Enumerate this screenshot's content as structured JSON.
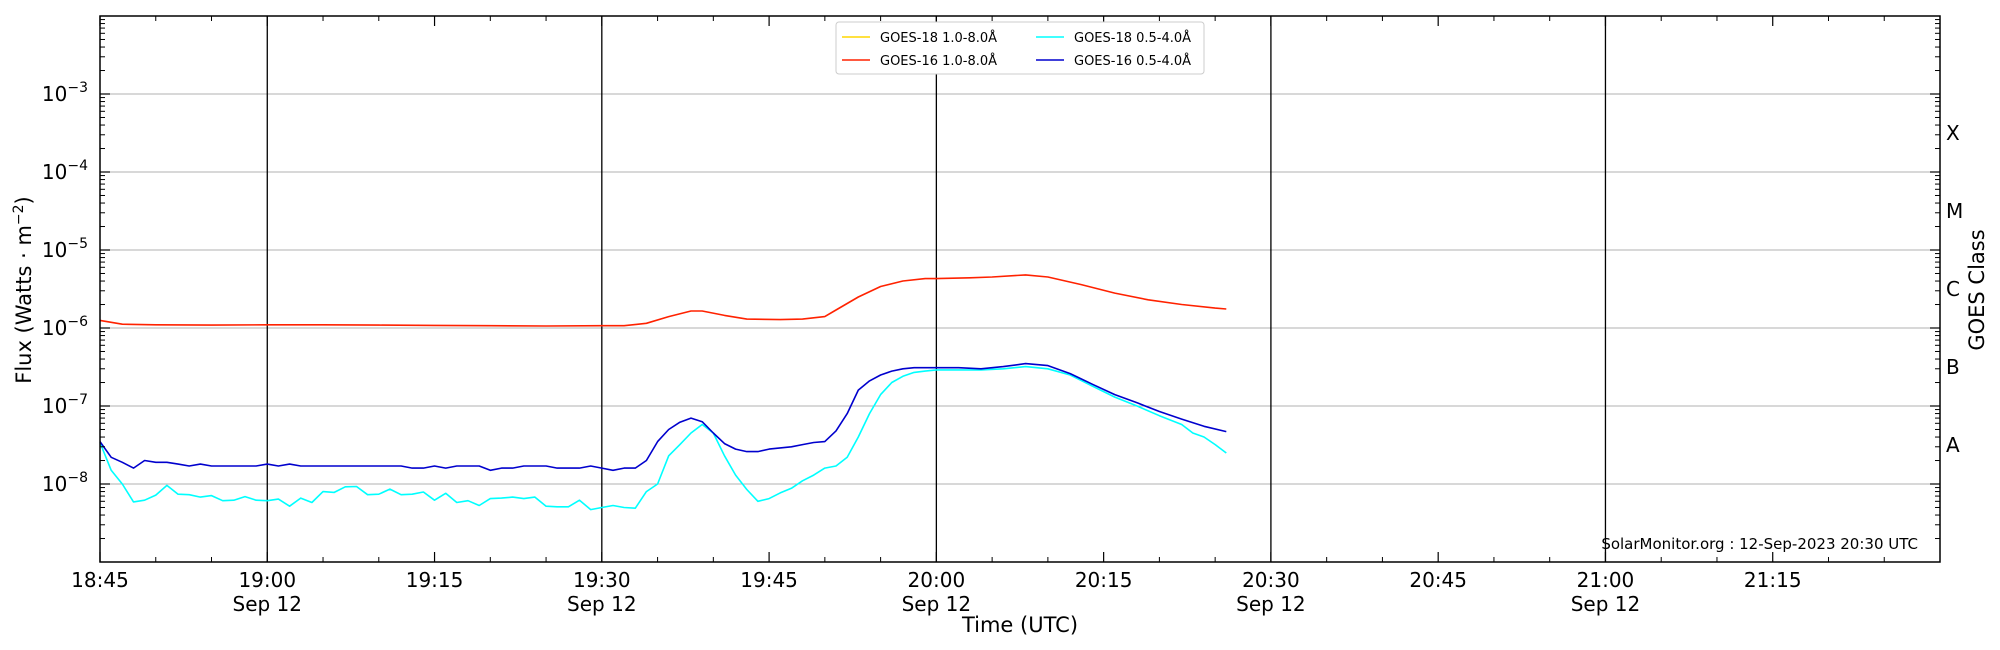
{
  "chart_data": {
    "type": "line",
    "y_scale": "log",
    "ylim": [
      1e-09,
      0.01
    ],
    "xlim": [
      "18:45",
      "21:30"
    ],
    "xlabel": "Time (UTC)",
    "ylabel": "Flux (Watts · m",
    "ylabel_sup": "−2",
    "ylabel_end": ")",
    "y2label": "GOES Class",
    "grid": "horizontal",
    "legend_position": "top-center",
    "credit": "SolarMonitor.org : 12-Sep-2023 20:30 UTC",
    "x_ticks": [
      {
        "t": "18:45",
        "label": "18:45",
        "sub": ""
      },
      {
        "t": "19:00",
        "label": "19:00",
        "sub": "Sep 12"
      },
      {
        "t": "19:15",
        "label": "19:15",
        "sub": ""
      },
      {
        "t": "19:30",
        "label": "19:30",
        "sub": "Sep 12"
      },
      {
        "t": "19:45",
        "label": "19:45",
        "sub": ""
      },
      {
        "t": "20:00",
        "label": "20:00",
        "sub": "Sep 12"
      },
      {
        "t": "20:15",
        "label": "20:15",
        "sub": ""
      },
      {
        "t": "20:30",
        "label": "20:30",
        "sub": "Sep 12"
      },
      {
        "t": "20:45",
        "label": "20:45",
        "sub": ""
      },
      {
        "t": "21:00",
        "label": "21:00",
        "sub": "Sep 12"
      },
      {
        "t": "21:15",
        "label": "21:15",
        "sub": ""
      }
    ],
    "vlines": [
      "19:00",
      "19:30",
      "20:00",
      "20:30",
      "21:00"
    ],
    "y_ticks": [
      {
        "exp": -8,
        "label_base": "10",
        "label_exp": "−8"
      },
      {
        "exp": -7,
        "label_base": "10",
        "label_exp": "−7"
      },
      {
        "exp": -6,
        "label_base": "10",
        "label_exp": "−6"
      },
      {
        "exp": -5,
        "label_base": "10",
        "label_exp": "−5"
      },
      {
        "exp": -4,
        "label_base": "10",
        "label_exp": "−4"
      },
      {
        "exp": -3,
        "label_base": "10",
        "label_exp": "−3"
      }
    ],
    "goes_classes": [
      {
        "label": "A",
        "exp": -7.5
      },
      {
        "label": "B",
        "exp": -6.5
      },
      {
        "label": "C",
        "exp": -5.5
      },
      {
        "label": "M",
        "exp": -4.5
      },
      {
        "label": "X",
        "exp": -3.5
      }
    ],
    "series": [
      {
        "name": "GOES-18 1.0-8.0Å",
        "color": "#ffd700",
        "times": [],
        "values": []
      },
      {
        "name": "GOES-16 1.0-8.0Å",
        "color": "#ff2200",
        "times": [
          "18:45",
          "18:47",
          "18:50",
          "18:55",
          "19:00",
          "19:05",
          "19:10",
          "19:15",
          "19:20",
          "19:25",
          "19:30",
          "19:32",
          "19:34",
          "19:36",
          "19:38",
          "19:39",
          "19:41",
          "19:43",
          "19:46",
          "19:48",
          "19:50",
          "19:51",
          "19:53",
          "19:55",
          "19:57",
          "19:59",
          "20:00",
          "20:03",
          "20:05",
          "20:08",
          "20:10",
          "20:13",
          "20:16",
          "20:19",
          "20:22",
          "20:25",
          "20:26"
        ],
        "values": [
          1.25e-06,
          1.12e-06,
          1.1e-06,
          1.09e-06,
          1.1e-06,
          1.1e-06,
          1.09e-06,
          1.08e-06,
          1.07e-06,
          1.06e-06,
          1.07e-06,
          1.07e-06,
          1.15e-06,
          1.4e-06,
          1.65e-06,
          1.65e-06,
          1.45e-06,
          1.3e-06,
          1.28e-06,
          1.3e-06,
          1.4e-06,
          1.7e-06,
          2.5e-06,
          3.4e-06,
          4e-06,
          4.3e-06,
          4.3e-06,
          4.4e-06,
          4.5e-06,
          4.8e-06,
          4.5e-06,
          3.6e-06,
          2.8e-06,
          2.3e-06,
          2e-06,
          1.8e-06,
          1.75e-06
        ]
      },
      {
        "name": "GOES-18 0.5-4.0Å",
        "color": "#00ffff",
        "times": [
          "18:45",
          "18:46",
          "18:47",
          "18:48",
          "18:49",
          "18:50",
          "18:51",
          "18:52",
          "18:53",
          "18:54",
          "18:55",
          "18:56",
          "18:57",
          "18:58",
          "18:59",
          "19:00",
          "19:01",
          "19:02",
          "19:03",
          "19:04",
          "19:05",
          "19:06",
          "19:07",
          "19:08",
          "19:09",
          "19:10",
          "19:11",
          "19:12",
          "19:13",
          "19:14",
          "19:15",
          "19:16",
          "19:17",
          "19:18",
          "19:19",
          "19:20",
          "19:21",
          "19:22",
          "19:23",
          "19:24",
          "19:25",
          "19:26",
          "19:27",
          "19:28",
          "19:29",
          "19:30",
          "19:31",
          "19:32",
          "19:33",
          "19:34",
          "19:35",
          "19:36",
          "19:37",
          "19:38",
          "19:39",
          "19:40",
          "19:41",
          "19:42",
          "19:43",
          "19:44",
          "19:45",
          "19:46",
          "19:47",
          "19:48",
          "19:49",
          "19:50",
          "19:51",
          "19:52",
          "19:53",
          "19:54",
          "19:55",
          "19:56",
          "19:57",
          "19:58",
          "19:59",
          "20:00",
          "20:02",
          "20:04",
          "20:06",
          "20:08",
          "20:10",
          "20:12",
          "20:14",
          "20:16",
          "20:18",
          "20:20",
          "20:22",
          "20:23",
          "20:24",
          "20:25",
          "20:26"
        ],
        "values": [
          3.4e-08,
          1.5e-08,
          1e-08,
          5.9e-09,
          6.2e-09,
          7.2e-09,
          9.6e-09,
          7.4e-09,
          7.3e-09,
          6.8e-09,
          7.1e-09,
          6.1e-09,
          6.2e-09,
          6.9e-09,
          6.2e-09,
          6.1e-09,
          6.4e-09,
          5.2e-09,
          6.6e-09,
          5.8e-09,
          8e-09,
          7.8e-09,
          9.2e-09,
          9.3e-09,
          7.3e-09,
          7.4e-09,
          8.6e-09,
          7.3e-09,
          7.4e-09,
          7.9e-09,
          6.2e-09,
          7.6e-09,
          5.8e-09,
          6.1e-09,
          5.3e-09,
          6.5e-09,
          6.6e-09,
          6.8e-09,
          6.5e-09,
          6.8e-09,
          5.2e-09,
          5.1e-09,
          5.1e-09,
          6.2e-09,
          4.7e-09,
          5e-09,
          5.3e-09,
          5e-09,
          4.9e-09,
          8e-09,
          1e-08,
          2.3e-08,
          3.2e-08,
          4.5e-08,
          5.8e-08,
          4.5e-08,
          2.3e-08,
          1.3e-08,
          8.5e-09,
          6e-09,
          6.5e-09,
          7.7e-09,
          8.8e-09,
          1.1e-08,
          1.3e-08,
          1.6e-08,
          1.7e-08,
          2.2e-08,
          4e-08,
          8e-08,
          1.4e-07,
          2e-07,
          2.4e-07,
          2.7e-07,
          2.8e-07,
          2.9e-07,
          2.9e-07,
          2.9e-07,
          3e-07,
          3.2e-07,
          3e-07,
          2.5e-07,
          1.8e-07,
          1.3e-07,
          1e-07,
          7.5e-08,
          5.8e-08,
          4.5e-08,
          4e-08,
          3.2e-08,
          2.5e-08
        ]
      },
      {
        "name": "GOES-16 0.5-4.0Å",
        "color": "#0000cd",
        "times": [
          "18:45",
          "18:46",
          "18:47",
          "18:48",
          "18:49",
          "18:50",
          "18:51",
          "18:52",
          "18:53",
          "18:54",
          "18:55",
          "18:56",
          "18:57",
          "18:58",
          "18:59",
          "19:00",
          "19:01",
          "19:02",
          "19:03",
          "19:04",
          "19:05",
          "19:06",
          "19:07",
          "19:08",
          "19:09",
          "19:10",
          "19:11",
          "19:12",
          "19:13",
          "19:14",
          "19:15",
          "19:16",
          "19:17",
          "19:18",
          "19:19",
          "19:20",
          "19:21",
          "19:22",
          "19:23",
          "19:24",
          "19:25",
          "19:26",
          "19:27",
          "19:28",
          "19:29",
          "19:30",
          "19:31",
          "19:32",
          "19:33",
          "19:34",
          "19:35",
          "19:36",
          "19:37",
          "19:38",
          "19:39",
          "19:40",
          "19:41",
          "19:42",
          "19:43",
          "19:44",
          "19:45",
          "19:46",
          "19:47",
          "19:48",
          "19:49",
          "19:50",
          "19:51",
          "19:52",
          "19:53",
          "19:54",
          "19:55",
          "19:56",
          "19:57",
          "19:58",
          "19:59",
          "20:00",
          "20:02",
          "20:04",
          "20:06",
          "20:08",
          "20:10",
          "20:12",
          "20:14",
          "20:16",
          "20:18",
          "20:20",
          "20:22",
          "20:24",
          "20:26"
        ],
        "values": [
          3.5e-08,
          2.2e-08,
          1.9e-08,
          1.6e-08,
          2e-08,
          1.9e-08,
          1.9e-08,
          1.8e-08,
          1.7e-08,
          1.8e-08,
          1.7e-08,
          1.7e-08,
          1.7e-08,
          1.7e-08,
          1.7e-08,
          1.8e-08,
          1.7e-08,
          1.8e-08,
          1.7e-08,
          1.7e-08,
          1.7e-08,
          1.7e-08,
          1.7e-08,
          1.7e-08,
          1.7e-08,
          1.7e-08,
          1.7e-08,
          1.7e-08,
          1.6e-08,
          1.6e-08,
          1.7e-08,
          1.6e-08,
          1.7e-08,
          1.7e-08,
          1.7e-08,
          1.5e-08,
          1.6e-08,
          1.6e-08,
          1.7e-08,
          1.7e-08,
          1.7e-08,
          1.6e-08,
          1.6e-08,
          1.6e-08,
          1.7e-08,
          1.6e-08,
          1.5e-08,
          1.6e-08,
          1.6e-08,
          2e-08,
          3.5e-08,
          5e-08,
          6.2e-08,
          7e-08,
          6.3e-08,
          4.5e-08,
          3.3e-08,
          2.8e-08,
          2.6e-08,
          2.6e-08,
          2.8e-08,
          2.9e-08,
          3e-08,
          3.2e-08,
          3.4e-08,
          3.5e-08,
          4.8e-08,
          8e-08,
          1.6e-07,
          2.1e-07,
          2.5e-07,
          2.8e-07,
          3e-07,
          3.1e-07,
          3.1e-07,
          3.1e-07,
          3.1e-07,
          3e-07,
          3.2e-07,
          3.5e-07,
          3.3e-07,
          2.6e-07,
          1.9e-07,
          1.4e-07,
          1.1e-07,
          8.5e-08,
          6.8e-08,
          5.5e-08,
          4.7e-08
        ]
      }
    ]
  }
}
